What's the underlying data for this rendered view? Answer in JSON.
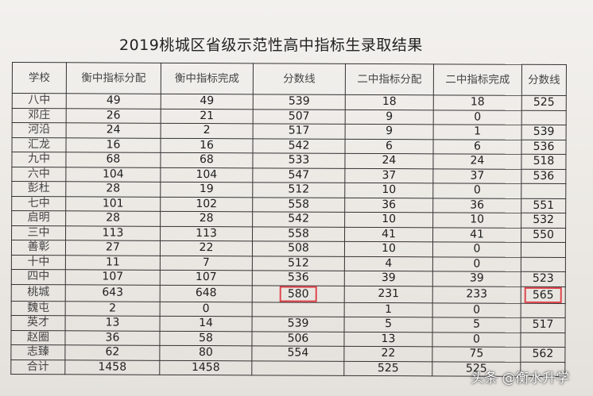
{
  "title": "2019桃城区省级示范性高中指标生录取结果",
  "headers": [
    "学校",
    "衡中指标分配",
    "衡中指标完成",
    "分数线",
    "二中指标分配",
    "二中指标完成",
    "分数线"
  ],
  "rows": [
    [
      "八中",
      "49",
      "49",
      "539",
      "18",
      "18",
      "525"
    ],
    [
      "邓庄",
      "26",
      "21",
      "507",
      "9",
      "0",
      ""
    ],
    [
      "河沿",
      "24",
      "2",
      "517",
      "9",
      "1",
      "539"
    ],
    [
      "汇龙",
      "16",
      "16",
      "542",
      "6",
      "6",
      "536"
    ],
    [
      "九中",
      "68",
      "68",
      "533",
      "24",
      "24",
      "518"
    ],
    [
      "六中",
      "104",
      "104",
      "547",
      "37",
      "37",
      "536"
    ],
    [
      "彭杜",
      "28",
      "19",
      "512",
      "10",
      "0",
      ""
    ],
    [
      "七中",
      "101",
      "102",
      "558",
      "36",
      "36",
      "551"
    ],
    [
      "启明",
      "28",
      "28",
      "542",
      "10",
      "10",
      "532"
    ],
    [
      "三中",
      "113",
      "113",
      "558",
      "41",
      "41",
      "550"
    ],
    [
      "善彰",
      "27",
      "22",
      "508",
      "10",
      "0",
      ""
    ],
    [
      "十中",
      "11",
      "7",
      "512",
      "4",
      "0",
      ""
    ],
    [
      "四中",
      "107",
      "107",
      "536",
      "39",
      "39",
      "523"
    ],
    [
      "桃城",
      "643",
      "648",
      "580",
      "231",
      "233",
      "565"
    ],
    [
      "魏屯",
      "2",
      "0",
      "",
      "1",
      "0",
      ""
    ],
    [
      "英才",
      "13",
      "14",
      "539",
      "5",
      "5",
      "517"
    ],
    [
      "赵圈",
      "36",
      "58",
      "506",
      "13",
      "0",
      ""
    ],
    [
      "志臻",
      "62",
      "80",
      "554",
      "22",
      "75",
      "562"
    ],
    [
      "合计",
      "1458",
      "1458",
      "",
      "525",
      "525",
      ""
    ]
  ],
  "highlighted_cells": [
    [
      13,
      3
    ],
    [
      13,
      6
    ]
  ],
  "highlight_color": "#e0464e",
  "watermark": "头条 @衡水升学"
}
